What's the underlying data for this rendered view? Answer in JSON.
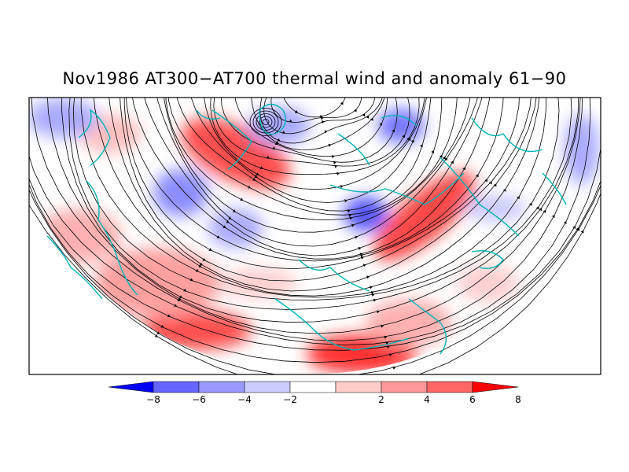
{
  "title": "Nov1986 AT300−AT700 thermal wind and anomaly 61−90",
  "colorbar": {
    "tick_labels": [
      "−8",
      "−6",
      "−4",
      "−2",
      "2",
      "4",
      "6",
      "8"
    ],
    "colors": [
      "#0000ff",
      "#6666ff",
      "#9999ff",
      "#ccccff",
      "#ffffff",
      "#ffcccc",
      "#ff9999",
      "#ff6666",
      "#ff0000"
    ]
  },
  "colors": {
    "coastline": "#00b5b5",
    "streamline": "#000000",
    "frame": "#000000"
  }
}
